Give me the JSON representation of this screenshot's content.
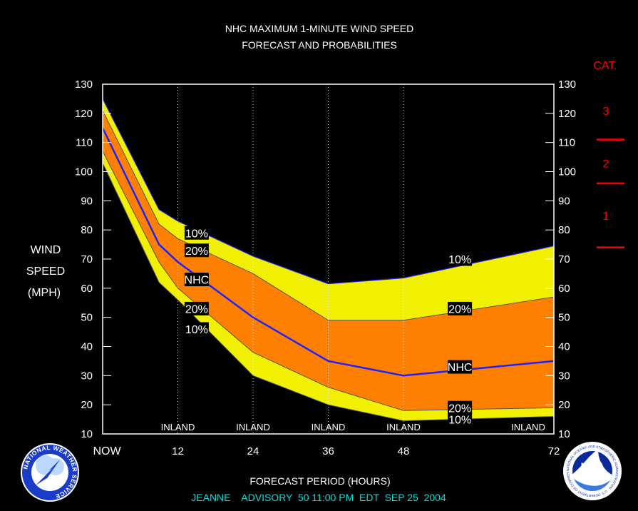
{
  "chart_data": {
    "type": "area",
    "title_lines": [
      "NHC MAXIMUM 1-MINUTE WIND SPEED",
      "FORECAST AND PROBABILITIES"
    ],
    "ylabel_lines": [
      "WIND",
      "SPEED",
      "(MPH)"
    ],
    "xlabel": "FORECAST PERIOD (HOURS)",
    "footer": "JEANNE    ADVISORY  50 11:00 PM  EDT  SEP 25  2004",
    "category_header": "CAT.",
    "categories": [
      {
        "label": "3",
        "y": 121
      },
      {
        "label": "2",
        "y": 103
      },
      {
        "label": "1",
        "y": 85
      }
    ],
    "category_boundaries": [
      111,
      96,
      74
    ],
    "x_ticks": [
      {
        "x": 0,
        "label": "NOW"
      },
      {
        "x": 12,
        "label": "12"
      },
      {
        "x": 24,
        "label": "24"
      },
      {
        "x": 36,
        "label": "36"
      },
      {
        "x": 48,
        "label": "48"
      },
      {
        "x": 72,
        "label": "72"
      }
    ],
    "y_ticks": [
      10,
      20,
      30,
      40,
      50,
      60,
      70,
      80,
      90,
      100,
      110,
      120,
      130
    ],
    "xlim": [
      0,
      72
    ],
    "ylim": [
      10,
      130
    ],
    "vertical_gridlines": [
      12,
      24,
      36,
      48
    ],
    "inland_labels": [
      {
        "x": 12,
        "label": "INLAND"
      },
      {
        "x": 24,
        "label": "INLAND"
      },
      {
        "x": 36,
        "label": "INLAND"
      },
      {
        "x": 48,
        "label": "INLAND"
      },
      {
        "x": 72,
        "label": "INLAND"
      }
    ],
    "x": [
      0,
      9,
      12,
      24,
      36,
      48,
      72
    ],
    "series": [
      {
        "name": "10%",
        "role": "upper10",
        "values": [
          125,
          87,
          83,
          71,
          61.5,
          63.5,
          74.5
        ]
      },
      {
        "name": "20%",
        "role": "upper20",
        "values": [
          121,
          82,
          77,
          65,
          49,
          49,
          57
        ]
      },
      {
        "name": "NHC",
        "role": "nhc",
        "values": [
          115,
          75,
          69,
          50,
          35,
          30,
          35
        ]
      },
      {
        "name": "20%",
        "role": "lower20",
        "values": [
          107,
          69,
          60,
          38,
          26,
          18,
          19
        ]
      },
      {
        "name": "10%",
        "role": "lower10",
        "values": [
          103,
          62,
          56,
          30,
          20,
          14.5,
          16
        ]
      }
    ],
    "point_labels": [
      {
        "text": "10%",
        "x": 15,
        "y": 79
      },
      {
        "text": "20%",
        "x": 15,
        "y": 73
      },
      {
        "text": "NHC",
        "x": 15,
        "y": 63
      },
      {
        "text": "20%",
        "x": 15,
        "y": 53
      },
      {
        "text": "10%",
        "x": 15,
        "y": 46
      },
      {
        "text": "10%",
        "x": 57,
        "y": 70
      },
      {
        "text": "20%",
        "x": 57,
        "y": 53
      },
      {
        "text": "NHC",
        "x": 57,
        "y": 33
      },
      {
        "text": "20%",
        "x": 57,
        "y": 19
      },
      {
        "text": "10%",
        "x": 57,
        "y": 15
      }
    ],
    "colors": {
      "band10": "#f0f000",
      "band20": "#ff8000",
      "nhc_line": "#2020ff",
      "category": "#ff0000",
      "footer": "#00e0e0",
      "background": "#000000"
    }
  },
  "logos": {
    "nws": {
      "text": "NATIONAL WEATHER SERVICE"
    },
    "noaa": {
      "text": "NOAA",
      "ring_text": "NATIONAL OCEANIC AND ATMOSPHERIC ADMINISTRATION · U.S. DEPARTMENT OF COMMERCE"
    }
  }
}
